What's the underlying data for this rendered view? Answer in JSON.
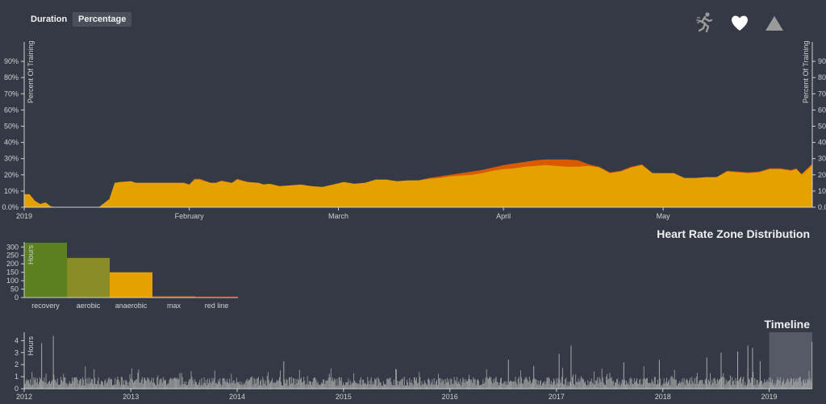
{
  "toolbar": {
    "duration_label": "Duration",
    "percentage_label": "Percentage",
    "selected": "Percentage",
    "icons": [
      "running-man-icon",
      "heart-icon",
      "mountain-icon"
    ]
  },
  "colors": {
    "background": "#343a45",
    "zone_lower": "#e5a100",
    "zone_upper": "#d95a00",
    "recovery": "#5c7f20",
    "aerobic": "#8a8c28",
    "anaerobic": "#e5a100",
    "max": "#d95a00",
    "red_line": "#b32400",
    "axis": "#cfcfcf",
    "timeline_bars": "#a8a8a8",
    "timeline_brush": "#555b66"
  },
  "chart_data": [
    {
      "type": "area",
      "ylabel": "Percent Of Training",
      "yticks": [
        "0.0%",
        "10%",
        "20%",
        "30%",
        "40%",
        "50%",
        "60%",
        "70%",
        "80%",
        "90%"
      ],
      "ylim": [
        0,
        0.98
      ],
      "xlim": [
        "2019-01-01",
        "2019-05-29"
      ],
      "xticks": [
        {
          "date": "2019-01-01",
          "label": "2019"
        },
        {
          "date": "2019-02-01",
          "label": "February"
        },
        {
          "date": "2019-03-01",
          "label": "March"
        },
        {
          "date": "2019-04-01",
          "label": "April"
        },
        {
          "date": "2019-05-01",
          "label": "May"
        }
      ],
      "x": [
        "2019-01-01",
        "2019-01-02",
        "2019-01-03",
        "2019-01-04",
        "2019-01-05",
        "2019-01-06",
        "2019-01-07",
        "2019-01-10",
        "2019-01-15",
        "2019-01-17",
        "2019-01-18",
        "2019-01-19",
        "2019-01-21",
        "2019-01-22",
        "2019-01-25",
        "2019-01-31",
        "2019-02-01",
        "2019-02-02",
        "2019-02-03",
        "2019-02-05",
        "2019-02-06",
        "2019-02-07",
        "2019-02-09",
        "2019-02-10",
        "2019-02-12",
        "2019-02-14",
        "2019-02-15",
        "2019-02-16",
        "2019-02-18",
        "2019-02-20",
        "2019-02-22",
        "2019-02-24",
        "2019-02-26",
        "2019-02-28",
        "2019-03-02",
        "2019-03-04",
        "2019-03-06",
        "2019-03-08",
        "2019-03-10",
        "2019-03-12",
        "2019-03-14",
        "2019-03-16",
        "2019-03-18",
        "2019-03-20",
        "2019-03-22",
        "2019-03-24",
        "2019-03-26",
        "2019-03-28",
        "2019-03-30",
        "2019-04-01",
        "2019-04-03",
        "2019-04-05",
        "2019-04-07",
        "2019-04-09",
        "2019-04-11",
        "2019-04-13",
        "2019-04-15",
        "2019-04-17",
        "2019-04-19",
        "2019-04-21",
        "2019-04-23",
        "2019-04-25",
        "2019-04-27",
        "2019-04-29",
        "2019-05-01",
        "2019-05-03",
        "2019-05-05",
        "2019-05-07",
        "2019-05-09",
        "2019-05-11",
        "2019-05-13",
        "2019-05-15",
        "2019-05-17",
        "2019-05-19",
        "2019-05-21",
        "2019-05-23",
        "2019-05-25",
        "2019-05-26",
        "2019-05-27",
        "2019-05-29"
      ],
      "series": [
        {
          "values": [
            0.08,
            0.08,
            0.04,
            0.02,
            0.03,
            0.005,
            0,
            0,
            0,
            0.05,
            0.15,
            0.155,
            0.16,
            0.15,
            0.15,
            0.15,
            0.14,
            0.17,
            0.17,
            0.15,
            0.15,
            0.16,
            0.15,
            0.17,
            0.155,
            0.15,
            0.14,
            0.145,
            0.13,
            0.135,
            0.14,
            0.13,
            0.125,
            0.14,
            0.155,
            0.145,
            0.15,
            0.17,
            0.17,
            0.16,
            0.165,
            0.165,
            0.175,
            0.18,
            0.19,
            0.195,
            0.2,
            0.21,
            0.225,
            0.235,
            0.24,
            0.25,
            0.255,
            0.26,
            0.255,
            0.25,
            0.25,
            0.255,
            0.245,
            0.21,
            0.22,
            0.245,
            0.26,
            0.21,
            0.21,
            0.21,
            0.18,
            0.18,
            0.185,
            0.185,
            0.22,
            0.215,
            0.21,
            0.215,
            0.235,
            0.235,
            0.225,
            0.235,
            0.2,
            0.26
          ]
        },
        {
          "values": [
            0,
            0,
            0,
            0,
            0,
            0,
            0,
            0,
            0,
            0,
            0,
            0,
            0,
            0,
            0,
            0,
            0,
            0.005,
            0.005,
            0,
            0,
            0.005,
            0,
            0.005,
            0,
            0,
            0,
            0,
            0,
            0,
            0,
            0,
            0,
            0,
            0,
            0,
            0,
            0,
            0,
            0,
            0,
            0,
            0.005,
            0.01,
            0.01,
            0.015,
            0.02,
            0.02,
            0.02,
            0.025,
            0.03,
            0.03,
            0.035,
            0.035,
            0.04,
            0.045,
            0.04,
            0.01,
            0.005,
            0.005,
            0.005,
            0.005,
            0.005,
            0,
            0,
            0,
            0,
            0,
            0,
            0,
            0.005,
            0.005,
            0.005,
            0.005,
            0.005,
            0.005,
            0.005,
            0.005,
            0.005,
            0.01
          ]
        }
      ]
    },
    {
      "type": "bar",
      "title": "Heart Rate Zone Distribution",
      "ylabel": "Hours",
      "yticks": [
        0,
        50,
        100,
        150,
        200,
        250,
        300
      ],
      "ylim": [
        0,
        330
      ],
      "categories": [
        "recovery",
        "aerobic",
        "anaerobic",
        "max",
        "red line"
      ],
      "values": [
        325,
        235,
        150,
        5,
        0.5
      ]
    },
    {
      "type": "bar",
      "title": "Timeline",
      "ylabel": "Hours",
      "yticks": [
        0,
        1,
        2,
        3,
        4
      ],
      "ylim": [
        0,
        4.7
      ],
      "xlim": [
        "2012-01-01",
        "2019-05-29"
      ],
      "xticks": [
        "2012",
        "2013",
        "2014",
        "2015",
        "2016",
        "2017",
        "2018",
        "2019"
      ],
      "brush": [
        "2019-01-01",
        "2019-05-29"
      ],
      "peaks": [
        {
          "x": "2012-03-01",
          "y": 3.8
        },
        {
          "x": "2012-04-10",
          "y": 4.4
        },
        {
          "x": "2014-06-10",
          "y": 2.3
        },
        {
          "x": "2016-07-20",
          "y": 2.4
        },
        {
          "x": "2016-10-15",
          "y": 1.9
        },
        {
          "x": "2017-01-10",
          "y": 2.9
        },
        {
          "x": "2017-02-20",
          "y": 3.6
        },
        {
          "x": "2017-08-20",
          "y": 2.2
        },
        {
          "x": "2017-12-20",
          "y": 2.4
        },
        {
          "x": "2018-06-01",
          "y": 2.6
        },
        {
          "x": "2018-07-20",
          "y": 3.0
        },
        {
          "x": "2018-09-15",
          "y": 3.1
        },
        {
          "x": "2018-10-20",
          "y": 3.6
        },
        {
          "x": "2018-11-05",
          "y": 3.4
        },
        {
          "x": "2018-12-01",
          "y": 2.3
        },
        {
          "x": "2019-05-28",
          "y": 3.9
        }
      ]
    }
  ],
  "sections": {
    "hr_title": "Heart Rate Zone Distribution",
    "timeline_title": "Timeline"
  }
}
